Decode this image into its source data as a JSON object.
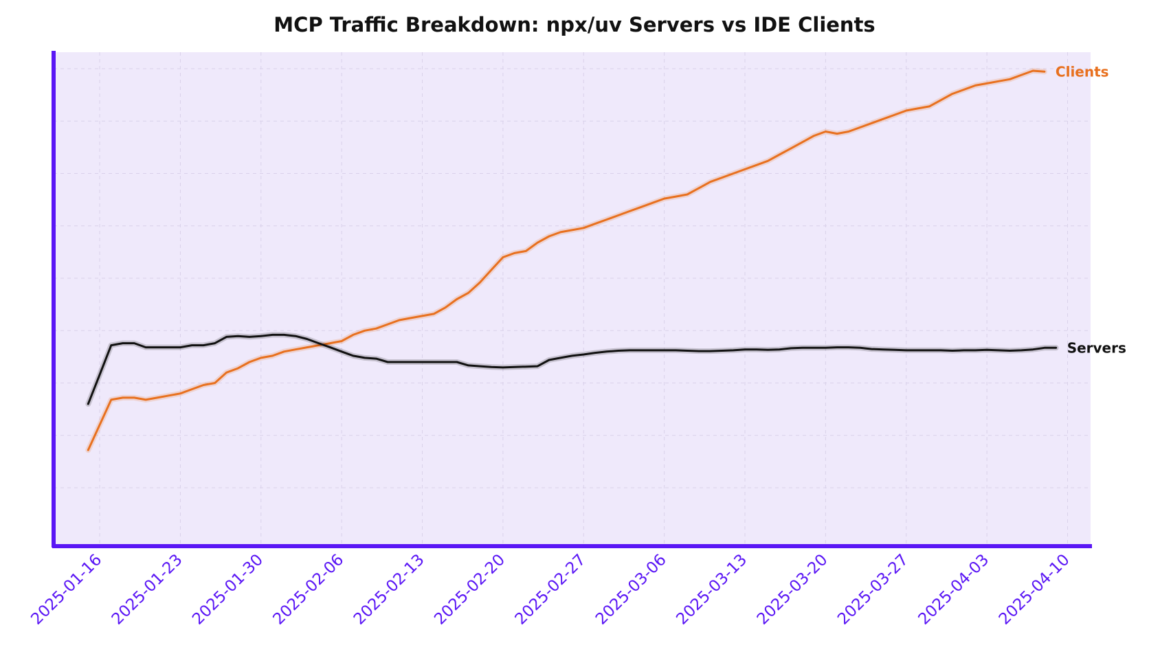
{
  "chart_data": {
    "type": "line",
    "title": "MCP Traffic Breakdown: npx/uv Servers vs IDE Clients",
    "xlabel": "",
    "ylabel": "",
    "x_ticks": [
      "2025-01-16",
      "2025-01-23",
      "2025-01-30",
      "2025-02-06",
      "2025-02-13",
      "2025-02-20",
      "2025-02-27",
      "2025-03-06",
      "2025-03-13",
      "2025-03-20",
      "2025-03-27",
      "2025-04-03",
      "2025-04-10"
    ],
    "x_range": [
      "2025-01-12",
      "2025-04-12"
    ],
    "y_range": [
      0,
      100
    ],
    "grid": true,
    "y_tick_labels_visible": false,
    "colors": {
      "accent": "#5a16f5",
      "background": "#efe9fb",
      "grid": "#d9d1ea",
      "clients": "#e8701e",
      "servers": "#111111"
    },
    "series": [
      {
        "name": "Clients",
        "label": "Clients",
        "color": "#e8701e",
        "points": [
          [
            "2025-01-15",
            9
          ],
          [
            "2025-01-17",
            21
          ],
          [
            "2025-01-18",
            21.5
          ],
          [
            "2025-01-19",
            21.5
          ],
          [
            "2025-01-20",
            21
          ],
          [
            "2025-01-21",
            21.5
          ],
          [
            "2025-01-22",
            22
          ],
          [
            "2025-01-23",
            22.5
          ],
          [
            "2025-01-24",
            23.5
          ],
          [
            "2025-01-25",
            24.5
          ],
          [
            "2025-01-26",
            25
          ],
          [
            "2025-01-27",
            27.5
          ],
          [
            "2025-01-28",
            28.5
          ],
          [
            "2025-01-29",
            30
          ],
          [
            "2025-01-30",
            31
          ],
          [
            "2025-01-31",
            31.5
          ],
          [
            "2025-02-01",
            32.5
          ],
          [
            "2025-02-02",
            33
          ],
          [
            "2025-02-03",
            33.5
          ],
          [
            "2025-02-04",
            34
          ],
          [
            "2025-02-05",
            34.5
          ],
          [
            "2025-02-06",
            35
          ],
          [
            "2025-02-07",
            36.5
          ],
          [
            "2025-02-08",
            37.5
          ],
          [
            "2025-02-09",
            38
          ],
          [
            "2025-02-10",
            39
          ],
          [
            "2025-02-11",
            40
          ],
          [
            "2025-02-12",
            40.5
          ],
          [
            "2025-02-13",
            41
          ],
          [
            "2025-02-14",
            41.5
          ],
          [
            "2025-02-15",
            43
          ],
          [
            "2025-02-16",
            45
          ],
          [
            "2025-02-17",
            46.5
          ],
          [
            "2025-02-18",
            49
          ],
          [
            "2025-02-19",
            52
          ],
          [
            "2025-02-20",
            55
          ],
          [
            "2025-02-21",
            56
          ],
          [
            "2025-02-22",
            56.5
          ],
          [
            "2025-02-23",
            58.5
          ],
          [
            "2025-02-24",
            60
          ],
          [
            "2025-02-25",
            61
          ],
          [
            "2025-02-26",
            61.5
          ],
          [
            "2025-02-27",
            62
          ],
          [
            "2025-02-28",
            63
          ],
          [
            "2025-03-01",
            64
          ],
          [
            "2025-03-02",
            65
          ],
          [
            "2025-03-03",
            66
          ],
          [
            "2025-03-04",
            67
          ],
          [
            "2025-03-05",
            68
          ],
          [
            "2025-03-06",
            69
          ],
          [
            "2025-03-07",
            69.5
          ],
          [
            "2025-03-08",
            70
          ],
          [
            "2025-03-09",
            71.5
          ],
          [
            "2025-03-10",
            73
          ],
          [
            "2025-03-11",
            74
          ],
          [
            "2025-03-12",
            75
          ],
          [
            "2025-03-13",
            76
          ],
          [
            "2025-03-14",
            77
          ],
          [
            "2025-03-15",
            78
          ],
          [
            "2025-03-16",
            79.5
          ],
          [
            "2025-03-17",
            81
          ],
          [
            "2025-03-18",
            82.5
          ],
          [
            "2025-03-19",
            84
          ],
          [
            "2025-03-20",
            85
          ],
          [
            "2025-03-21",
            84.5
          ],
          [
            "2025-03-22",
            85
          ],
          [
            "2025-03-23",
            86
          ],
          [
            "2025-03-24",
            87
          ],
          [
            "2025-03-25",
            88
          ],
          [
            "2025-03-26",
            89
          ],
          [
            "2025-03-27",
            90
          ],
          [
            "2025-03-28",
            90.5
          ],
          [
            "2025-03-29",
            91
          ],
          [
            "2025-03-30",
            92.5
          ],
          [
            "2025-03-31",
            94
          ],
          [
            "2025-04-01",
            95
          ],
          [
            "2025-04-02",
            96
          ],
          [
            "2025-04-03",
            96.5
          ],
          [
            "2025-04-04",
            97
          ],
          [
            "2025-04-05",
            97.5
          ],
          [
            "2025-04-06",
            98.5
          ],
          [
            "2025-04-07",
            99.5
          ],
          [
            "2025-04-08",
            99.3
          ]
        ]
      },
      {
        "name": "Servers",
        "label": "Servers",
        "color": "#111111",
        "points": [
          [
            "2025-01-15",
            20
          ],
          [
            "2025-01-16",
            27
          ],
          [
            "2025-01-17",
            34
          ],
          [
            "2025-01-18",
            34.5
          ],
          [
            "2025-01-19",
            34.5
          ],
          [
            "2025-01-20",
            33.5
          ],
          [
            "2025-01-21",
            33.5
          ],
          [
            "2025-01-22",
            33.5
          ],
          [
            "2025-01-23",
            33.5
          ],
          [
            "2025-01-24",
            34
          ],
          [
            "2025-01-25",
            34
          ],
          [
            "2025-01-26",
            34.5
          ],
          [
            "2025-01-27",
            36
          ],
          [
            "2025-01-28",
            36.2
          ],
          [
            "2025-01-29",
            36
          ],
          [
            "2025-01-30",
            36.2
          ],
          [
            "2025-01-31",
            36.5
          ],
          [
            "2025-02-01",
            36.5
          ],
          [
            "2025-02-02",
            36.2
          ],
          [
            "2025-02-03",
            35.5
          ],
          [
            "2025-02-04",
            34.5
          ],
          [
            "2025-02-05",
            33.5
          ],
          [
            "2025-02-06",
            32.5
          ],
          [
            "2025-02-07",
            31.5
          ],
          [
            "2025-02-08",
            31
          ],
          [
            "2025-02-09",
            30.8
          ],
          [
            "2025-02-10",
            30
          ],
          [
            "2025-02-11",
            30
          ],
          [
            "2025-02-12",
            30
          ],
          [
            "2025-02-13",
            30
          ],
          [
            "2025-02-14",
            30
          ],
          [
            "2025-02-15",
            30
          ],
          [
            "2025-02-16",
            30
          ],
          [
            "2025-02-17",
            29.2
          ],
          [
            "2025-02-18",
            29
          ],
          [
            "2025-02-19",
            28.8
          ],
          [
            "2025-02-20",
            28.7
          ],
          [
            "2025-02-21",
            28.8
          ],
          [
            "2025-02-22",
            28.9
          ],
          [
            "2025-02-23",
            29
          ],
          [
            "2025-02-24",
            30.5
          ],
          [
            "2025-02-25",
            31
          ],
          [
            "2025-02-26",
            31.5
          ],
          [
            "2025-02-27",
            31.8
          ],
          [
            "2025-02-28",
            32.2
          ],
          [
            "2025-03-01",
            32.5
          ],
          [
            "2025-03-02",
            32.7
          ],
          [
            "2025-03-03",
            32.8
          ],
          [
            "2025-03-04",
            32.8
          ],
          [
            "2025-03-05",
            32.8
          ],
          [
            "2025-03-06",
            32.8
          ],
          [
            "2025-03-07",
            32.8
          ],
          [
            "2025-03-08",
            32.7
          ],
          [
            "2025-03-09",
            32.6
          ],
          [
            "2025-03-10",
            32.6
          ],
          [
            "2025-03-11",
            32.7
          ],
          [
            "2025-03-12",
            32.8
          ],
          [
            "2025-03-13",
            33
          ],
          [
            "2025-03-14",
            33
          ],
          [
            "2025-03-15",
            32.9
          ],
          [
            "2025-03-16",
            33
          ],
          [
            "2025-03-17",
            33.3
          ],
          [
            "2025-03-18",
            33.4
          ],
          [
            "2025-03-19",
            33.4
          ],
          [
            "2025-03-20",
            33.4
          ],
          [
            "2025-03-21",
            33.5
          ],
          [
            "2025-03-22",
            33.5
          ],
          [
            "2025-03-23",
            33.4
          ],
          [
            "2025-03-24",
            33.1
          ],
          [
            "2025-03-25",
            33
          ],
          [
            "2025-03-26",
            32.9
          ],
          [
            "2025-03-27",
            32.8
          ],
          [
            "2025-03-28",
            32.8
          ],
          [
            "2025-03-29",
            32.8
          ],
          [
            "2025-03-30",
            32.8
          ],
          [
            "2025-03-31",
            32.7
          ],
          [
            "2025-04-01",
            32.8
          ],
          [
            "2025-04-02",
            32.8
          ],
          [
            "2025-04-03",
            32.9
          ],
          [
            "2025-04-04",
            32.8
          ],
          [
            "2025-04-05",
            32.7
          ],
          [
            "2025-04-06",
            32.8
          ],
          [
            "2025-04-07",
            33
          ],
          [
            "2025-04-08",
            33.4
          ],
          [
            "2025-04-09",
            33.4
          ]
        ]
      }
    ]
  }
}
